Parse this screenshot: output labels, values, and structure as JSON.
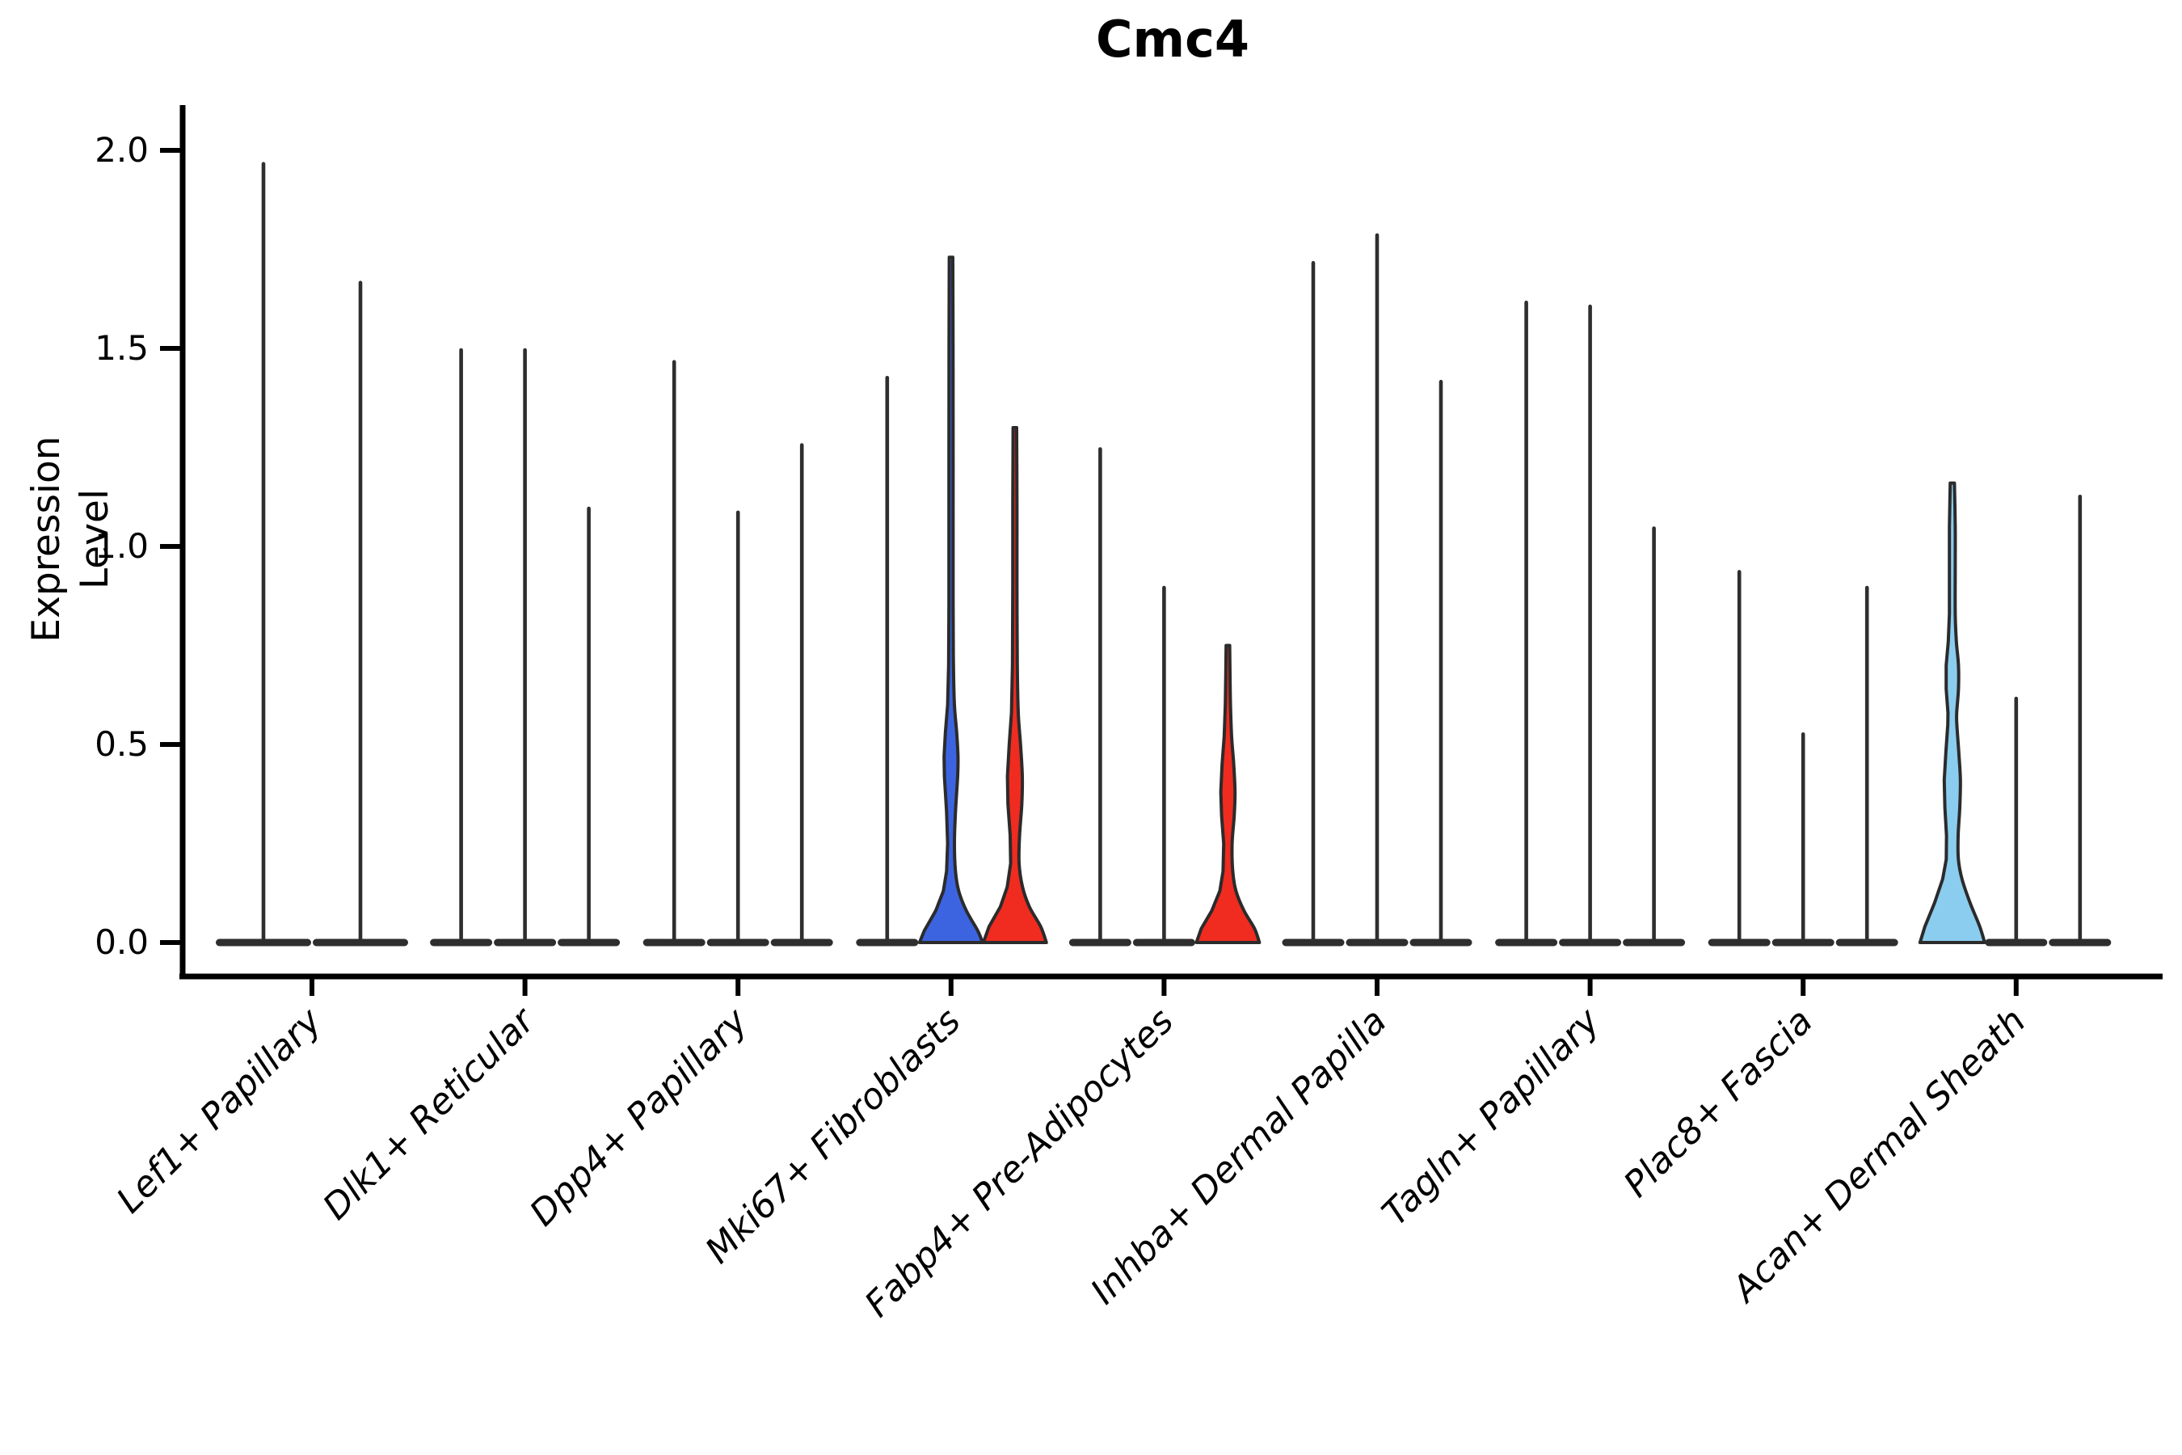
{
  "title": "Cmc4",
  "ylabel": "Expression Level",
  "chart_data": {
    "type": "violin",
    "title": "Cmc4",
    "xlabel": "",
    "ylabel": "Expression Level",
    "ylim": [
      0.0,
      2.1
    ],
    "yticks": [
      0.0,
      0.5,
      1.0,
      1.5,
      2.0
    ],
    "ytick_labels": [
      "0.0",
      "0.5",
      "1.0",
      "1.5",
      "2.0"
    ],
    "grid": false,
    "legend_position": "none",
    "categories": [
      "Lef1+ Papillary",
      "Dlk1+ Reticular",
      "Dpp4+ Papillary",
      "Mki67+ Fibroblasts",
      "Fabp4+ Pre-Adipocytes",
      "Inhba+ Dermal Papilla",
      "Tagln+ Papillary",
      "Plac8+ Fascia",
      "Acan+ Dermal Sheath"
    ],
    "description": "Stacked-violin style expression plot; most violins collapse to a flat mass at 0 with a thin spike up to the max expression value. A few violins show visible colored density bodies.",
    "colors": {
      "spike": "#2e2e2e",
      "outline": "#2b2b2b",
      "blue": "#3D64E0",
      "red": "#F02B20",
      "skyblue": "#8BCDEF"
    },
    "groups": [
      {
        "category": "Lef1+ Papillary",
        "violins": [
          {
            "max": 1.97,
            "fill": null
          },
          {
            "max": 1.67,
            "fill": null
          }
        ]
      },
      {
        "category": "Dlk1+ Reticular",
        "violins": [
          {
            "max": 1.5,
            "fill": null
          },
          {
            "max": 1.5,
            "fill": null
          },
          {
            "max": 1.1,
            "fill": null
          }
        ]
      },
      {
        "category": "Dpp4+ Papillary",
        "violins": [
          {
            "max": 1.47,
            "fill": null
          },
          {
            "max": 1.09,
            "fill": null
          },
          {
            "max": 1.26,
            "fill": null
          }
        ]
      },
      {
        "category": "Mki67+ Fibroblasts",
        "violins": [
          {
            "max": 1.43,
            "fill": null
          },
          {
            "max": 1.73,
            "fill": "#3D64E0",
            "profile": [
              [
                0.0,
                39
              ],
              [
                0.03,
                33
              ],
              [
                0.08,
                19
              ],
              [
                0.13,
                9.5
              ],
              [
                0.18,
                5.5
              ],
              [
                0.25,
                4.2
              ],
              [
                0.33,
                5.5
              ],
              [
                0.42,
                8.2
              ],
              [
                0.47,
                8.6
              ],
              [
                0.53,
                7.0
              ],
              [
                0.6,
                4.2
              ],
              [
                0.7,
                3.0
              ],
              [
                0.85,
                2.6
              ],
              [
                1.2,
                2.6
              ],
              [
                1.5,
                2.5
              ],
              [
                1.73,
                2.2
              ]
            ]
          },
          {
            "max": 1.3,
            "fill": "#F02B20",
            "profile": [
              [
                0.0,
                39
              ],
              [
                0.04,
                32
              ],
              [
                0.09,
                18
              ],
              [
                0.14,
                9.5
              ],
              [
                0.2,
                5.2
              ],
              [
                0.27,
                5.8
              ],
              [
                0.35,
                8.6
              ],
              [
                0.42,
                9.2
              ],
              [
                0.5,
                7.0
              ],
              [
                0.58,
                4.2
              ],
              [
                0.7,
                3.0
              ],
              [
                0.9,
                2.6
              ],
              [
                1.1,
                2.6
              ],
              [
                1.3,
                2.2
              ]
            ]
          }
        ]
      },
      {
        "category": "Fabp4+ Pre-Adipocytes",
        "violins": [
          {
            "max": 1.25,
            "fill": null
          },
          {
            "max": 0.9,
            "fill": null
          },
          {
            "max": 0.75,
            "fill": "#F02B20",
            "profile": [
              [
                0.0,
                39
              ],
              [
                0.035,
                33
              ],
              [
                0.08,
                20
              ],
              [
                0.13,
                10
              ],
              [
                0.18,
                6.0
              ],
              [
                0.25,
                5.2
              ],
              [
                0.32,
                7.8
              ],
              [
                0.38,
                8.8
              ],
              [
                0.45,
                7.2
              ],
              [
                0.52,
                4.6
              ],
              [
                0.6,
                3.2
              ],
              [
                0.68,
                2.6
              ],
              [
                0.75,
                2.2
              ]
            ]
          }
        ]
      },
      {
        "category": "Inhba+ Dermal Papilla",
        "violins": [
          {
            "max": 1.72,
            "fill": null
          },
          {
            "max": 1.79,
            "fill": null
          },
          {
            "max": 1.42,
            "fill": null
          }
        ]
      },
      {
        "category": "Tagln+ Papillary",
        "violins": [
          {
            "max": 1.62,
            "fill": null
          },
          {
            "max": 1.61,
            "fill": null
          },
          {
            "max": 1.05,
            "fill": null
          }
        ]
      },
      {
        "category": "Plac8+ Fascia",
        "violins": [
          {
            "max": 0.94,
            "fill": null
          },
          {
            "max": 0.53,
            "fill": null
          },
          {
            "max": 0.9,
            "fill": null
          }
        ]
      },
      {
        "category": "Acan+ Dermal Sheath",
        "violins": [
          {
            "max": 1.16,
            "fill": "#8BCDEF",
            "profile": [
              [
                0.0,
                40
              ],
              [
                0.04,
                34
              ],
              [
                0.1,
                22
              ],
              [
                0.16,
                12
              ],
              [
                0.21,
                7.5
              ],
              [
                0.27,
                7.2
              ],
              [
                0.34,
                9.2
              ],
              [
                0.41,
                10.0
              ],
              [
                0.48,
                8.0
              ],
              [
                0.55,
                5.6
              ],
              [
                0.58,
                5.4
              ],
              [
                0.64,
                7.6
              ],
              [
                0.7,
                7.6
              ],
              [
                0.76,
                5.0
              ],
              [
                0.83,
                3.6
              ],
              [
                0.95,
                3.6
              ],
              [
                1.05,
                3.6
              ],
              [
                1.16,
                2.6
              ]
            ]
          },
          {
            "max": 0.62,
            "fill": null
          },
          {
            "max": 1.13,
            "fill": null
          }
        ]
      }
    ]
  }
}
